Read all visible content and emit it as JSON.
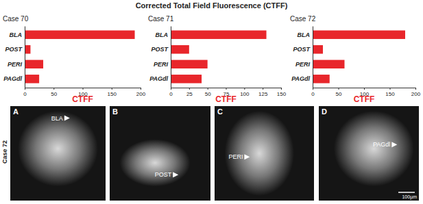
{
  "title": "Corrected Total Field Fluorescence (CTFF)",
  "chart_data": [
    {
      "type": "bar",
      "orientation": "horizontal",
      "title": "Case 70",
      "x_label": "CTFF",
      "categories": [
        "BLA",
        "POST",
        "PERI",
        "PAGdl"
      ],
      "values": [
        190,
        10,
        32,
        25
      ],
      "color": "#e8262b",
      "xlim": [
        0,
        200
      ],
      "xticks": [
        0,
        50,
        100,
        150,
        200
      ],
      "grid": false
    },
    {
      "type": "bar",
      "orientation": "horizontal",
      "title": "Case 71",
      "x_label": "CTFF",
      "categories": [
        "BLA",
        "POST",
        "PERI",
        "PAGdl"
      ],
      "values": [
        130,
        25,
        50,
        42
      ],
      "color": "#e8262b",
      "xlim": [
        0,
        150
      ],
      "xticks": [
        0,
        25,
        50,
        75,
        100,
        125,
        150
      ],
      "grid": false
    },
    {
      "type": "bar",
      "orientation": "horizontal",
      "title": "Case 72",
      "x_label": "CTFF",
      "categories": [
        "BLA",
        "POST",
        "PERI",
        "PAGdl"
      ],
      "values": [
        180,
        20,
        62,
        33
      ],
      "color": "#e8262b",
      "xlim": [
        0,
        200
      ],
      "xticks": [
        0,
        50,
        100,
        150,
        200
      ],
      "grid": false
    }
  ],
  "image_panels": {
    "row_label": "Case 72",
    "panels": [
      {
        "letter": "A",
        "label": "BLA"
      },
      {
        "letter": "B",
        "label": "POST"
      },
      {
        "letter": "C",
        "label": "PERI"
      },
      {
        "letter": "D",
        "label": "PAGdl"
      }
    ],
    "scale_bar": "100µm"
  }
}
